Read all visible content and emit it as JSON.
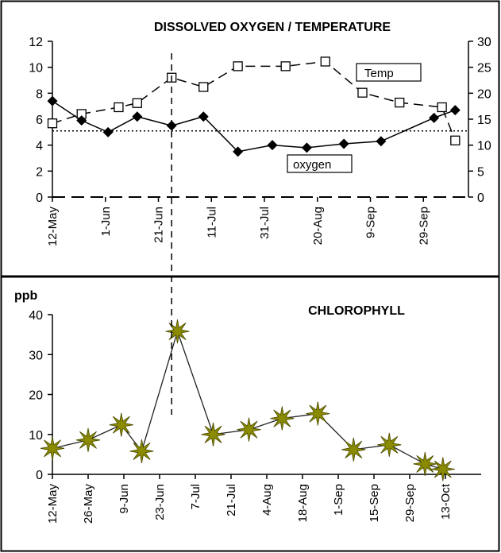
{
  "chart_data": [
    {
      "type": "line",
      "title": "DISSOLVED OXYGEN / TEMPERATURE",
      "x_ticks": [
        "12-May",
        "1-Jun",
        "21-Jun",
        "11-Jul",
        "31-Jul",
        "20-Aug",
        "9-Sep",
        "29-Sep"
      ],
      "left_axis": {
        "ticks": [
          "0",
          "2",
          "4",
          "6",
          "8",
          "10",
          "12"
        ],
        "min": 0,
        "max": 12
      },
      "right_axis": {
        "ticks": [
          "0",
          "5",
          "10",
          "15",
          "20",
          "25",
          "30"
        ],
        "min": 0,
        "max": 30
      },
      "series": [
        {
          "name": "oxygen",
          "axis": "left",
          "marker": "diamond",
          "line": "solid",
          "points": [
            [
              "12-May",
              7.4
            ],
            [
              "23-May",
              5.9
            ],
            [
              "2-Jun",
              5.0
            ],
            [
              "13-Jun",
              6.2
            ],
            [
              "26-Jun",
              5.5
            ],
            [
              "8-Jul",
              6.2
            ],
            [
              "21-Jul",
              3.5
            ],
            [
              "3-Aug",
              4.0
            ],
            [
              "16-Aug",
              3.8
            ],
            [
              "30-Aug",
              4.1
            ],
            [
              "13-Sep",
              4.3
            ],
            [
              "3-Oct",
              6.1
            ],
            [
              "11-Oct",
              6.7
            ]
          ]
        },
        {
          "name": "Temp",
          "axis": "right",
          "marker": "square",
          "line": "dashed",
          "points": [
            [
              "12-May",
              14.2
            ],
            [
              "23-May",
              16.0
            ],
            [
              "6-Jun",
              17.3
            ],
            [
              "13-Jun",
              18.1
            ],
            [
              "26-Jun",
              23.0
            ],
            [
              "8-Jul",
              21.2
            ],
            [
              "21-Jul",
              25.2
            ],
            [
              "8-Aug",
              25.2
            ],
            [
              "23-Aug",
              26.1
            ],
            [
              "6-Sep",
              20.1
            ],
            [
              "20-Sep",
              18.2
            ],
            [
              "6-Oct",
              17.3
            ],
            [
              "11-Oct",
              10.9
            ]
          ]
        }
      ],
      "reference_line": {
        "axis": "left",
        "value": 5.1,
        "style": "dotted"
      },
      "marker_line_date": "26-Jun",
      "grid": false
    },
    {
      "type": "line",
      "title": "CHLOROPHYLL",
      "ylabel": "ppb",
      "x_ticks": [
        "12-May",
        "26-May",
        "9-Jun",
        "23-Jun",
        "7-Jul",
        "21-Jul",
        "4-Aug",
        "18-Aug",
        "1-Sep",
        "15-Sep",
        "29-Sep",
        "13-Oct"
      ],
      "y_axis": {
        "ticks": [
          "0",
          "10",
          "20",
          "30",
          "40"
        ],
        "min": 0,
        "max": 40
      },
      "series": [
        {
          "marker": "star",
          "line": "solid",
          "points": [
            [
              "12-May",
              6.5
            ],
            [
              "26-May",
              8.6
            ],
            [
              "8-Jun",
              12.4
            ],
            [
              "16-Jun",
              5.8
            ],
            [
              "30-Jun",
              35.8
            ],
            [
              "14-Jul",
              10.0
            ],
            [
              "28-Jul",
              11.2
            ],
            [
              "10-Aug",
              14.0
            ],
            [
              "24-Aug",
              15.2
            ],
            [
              "7-Sep",
              6.2
            ],
            [
              "21-Sep",
              7.4
            ],
            [
              "5-Oct",
              2.6
            ],
            [
              "12-Oct",
              1.3
            ]
          ]
        }
      ],
      "marker_line_date": "30-Jun",
      "colors": {
        "star_fill": "#8b8b00",
        "star_stroke": "#4a4a00"
      },
      "grid": false
    }
  ]
}
